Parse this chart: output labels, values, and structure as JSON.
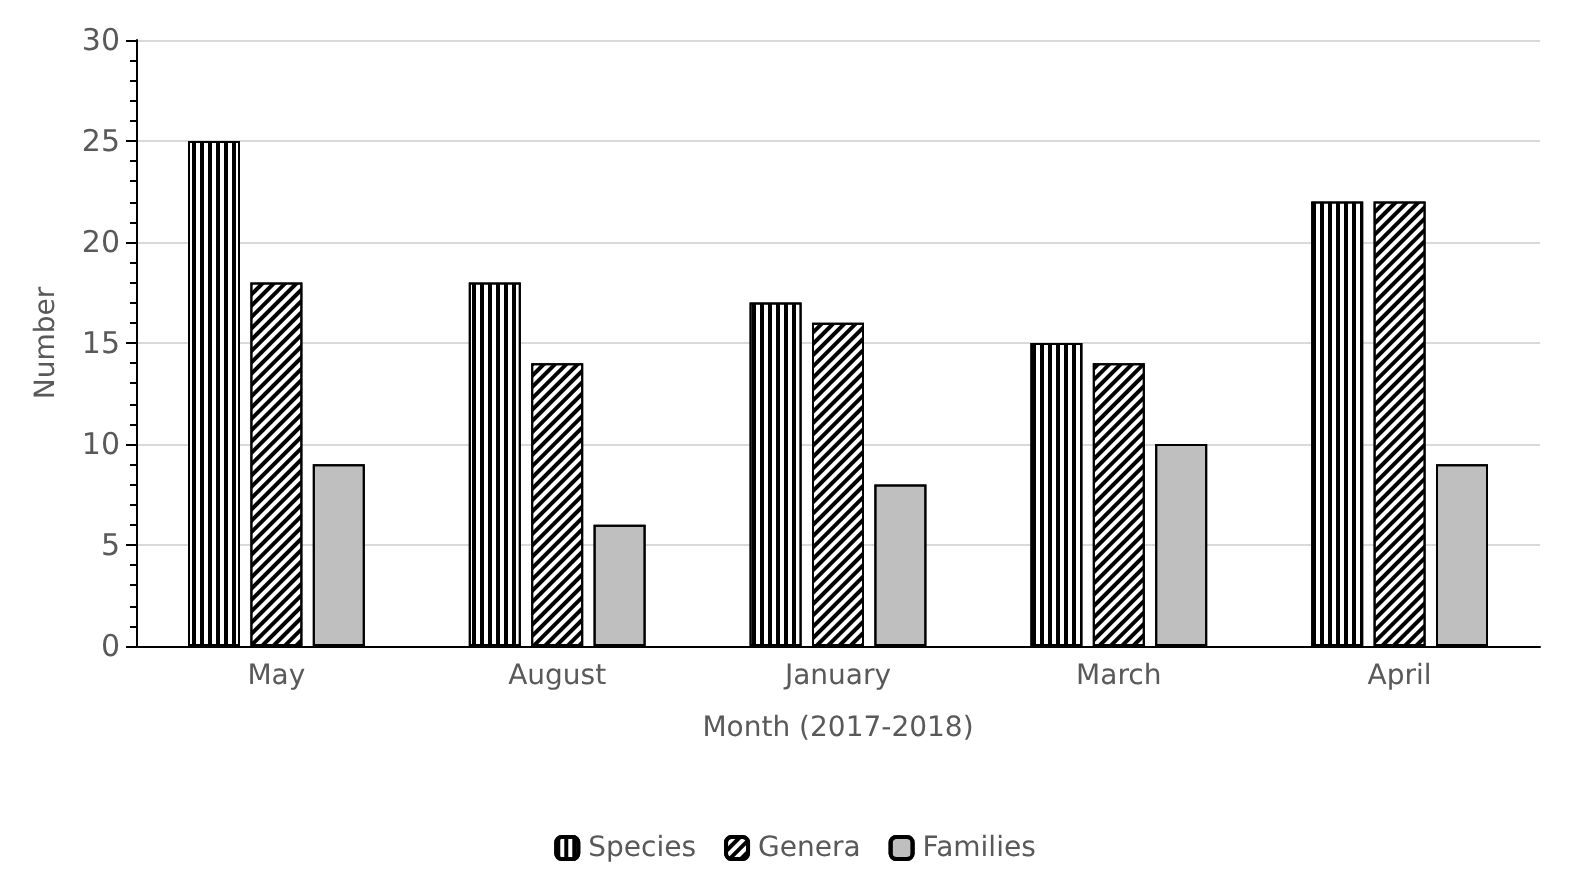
{
  "chart_data": {
    "type": "bar",
    "xlabel": "Month (2017-2018)",
    "ylabel": "Number",
    "categories": [
      "May",
      "August",
      "January",
      "March",
      "April"
    ],
    "series": [
      {
        "name": "Species",
        "color": "#ffffff",
        "values": [
          25,
          18,
          17,
          15,
          22
        ]
      },
      {
        "name": "Genera",
        "color": "#ffffff",
        "values": [
          18,
          14,
          16,
          14,
          22
        ]
      },
      {
        "name": "Families",
        "color": "#bfbfbf",
        "values": [
          9,
          6,
          8,
          10,
          9
        ]
      }
    ],
    "ylim": [
      0,
      30
    ],
    "yticks": [
      0,
      5,
      10,
      15,
      20,
      25,
      30
    ],
    "grid": "y",
    "legend": "bottom"
  }
}
